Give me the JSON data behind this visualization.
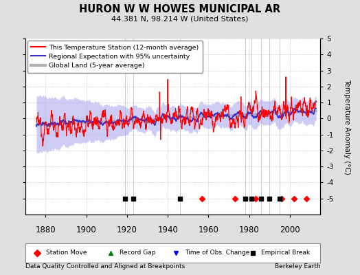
{
  "title": "HURON W W HOWES MUNICIPAL AR",
  "subtitle": "44.381 N, 98.214 W (United States)",
  "xlabel_bottom": "Data Quality Controlled and Aligned at Breakpoints",
  "xlabel_right": "Berkeley Earth",
  "ylabel_right": "Temperature Anomaly (°C)",
  "ylim": [
    -6,
    5
  ],
  "yticks": [
    -5,
    -4,
    -3,
    -2,
    -1,
    0,
    1,
    2,
    3,
    4,
    5
  ],
  "xlim": [
    1870,
    2015
  ],
  "xticks": [
    1880,
    1900,
    1920,
    1940,
    1960,
    1980,
    2000
  ],
  "bg_color": "#e0e0e0",
  "plot_bg_color": "#ffffff",
  "grid_color": "#b0b0b0",
  "station_color": "#ff0000",
  "regional_color": "#3333cc",
  "uncertainty_color": "#aaaaee",
  "global_color": "#b0b0b0",
  "station_moves": [
    1957,
    1973,
    1983,
    1996,
    2002,
    2008
  ],
  "record_gaps": [],
  "obs_changes": [],
  "empirical_breaks": [
    1919,
    1923,
    1946,
    1978,
    1981,
    1986,
    1990,
    1995
  ],
  "legend_line1": "This Temperature Station (12-month average)",
  "legend_line2": "Regional Expectation with 95% uncertainty",
  "legend_line3": "Global Land (5-year average)"
}
